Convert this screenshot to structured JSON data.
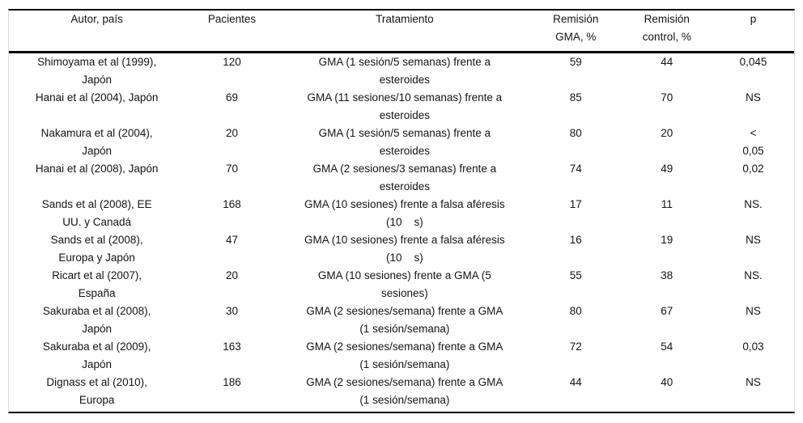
{
  "table": {
    "columns": [
      {
        "key": "author",
        "label": "Autor, país"
      },
      {
        "key": "patients",
        "label": "Pacientes"
      },
      {
        "key": "treatment",
        "label": "Tratamiento"
      },
      {
        "key": "remission_gma",
        "label": "Remisión\nGMA, %"
      },
      {
        "key": "remission_control",
        "label": "Remisión\ncontrol, %"
      },
      {
        "key": "p",
        "label": "p"
      }
    ],
    "rows": [
      {
        "author": "Shimoyama et al (1999),\nJapón",
        "patients": "120",
        "treatment": "GMA (1 sesión/5 semanas) frente a\nesteroides",
        "remission_gma": "59",
        "remission_control": "44",
        "p": "0,045"
      },
      {
        "author": "Hanai et al (2004), Japón",
        "patients": "69",
        "treatment": "GMA (11 sesiones/10 semanas) frente a\nesteroides",
        "remission_gma": "85",
        "remission_control": "70",
        "p": "NS"
      },
      {
        "author": "Nakamura et al (2004),\nJapón",
        "patients": "20",
        "treatment": "GMA (1 sesión/5 semanas) frente a\nesteroides",
        "remission_gma": "80",
        "remission_control": "20",
        "p": "<\n0,05"
      },
      {
        "author": "Hanai et al (2008), Japón",
        "patients": "70",
        "treatment": "GMA (2 sesiones/3 semanas) frente a\nesteroides",
        "remission_gma": "74",
        "remission_control": "49",
        "p": "0,02"
      },
      {
        "author": "Sands et al (2008), EE\nUU. y Canadá",
        "patients": "168",
        "treatment": "GMA (10 sesiones) frente a falsa aféresis\n(10    s)",
        "remission_gma": "17",
        "remission_control": "11",
        "p": "NS."
      },
      {
        "author": "Sands et al (2008),\nEuropa y Japón",
        "patients": "47",
        "treatment": "GMA (10 sesiones) frente a falsa aféresis\n(10    s)",
        "remission_gma": "16",
        "remission_control": "19",
        "p": "NS"
      },
      {
        "author": "Ricart et al (2007),\nEspaña",
        "patients": "20",
        "treatment": "GMA (10 sesiones) frente a GMA (5\nsesiones)",
        "remission_gma": "55",
        "remission_control": "38",
        "p": "NS."
      },
      {
        "author": "Sakuraba et al (2008),\nJapón",
        "patients": "30",
        "treatment": "GMA (2 sesiones/semana) frente a GMA\n(1 sesión/semana)",
        "remission_gma": "80",
        "remission_control": "67",
        "p": "NS"
      },
      {
        "author": "Sakuraba et al (2009),\nJapón",
        "patients": "163",
        "treatment": "GMA (2 sesiones/semana) frente a GMA\n(1 sesión/semana)",
        "remission_gma": "72",
        "remission_control": "54",
        "p": "0,03"
      },
      {
        "author": "Dignass et al (2010),\nEuropa",
        "patients": "186",
        "treatment": "GMA (2 sesiones/semana) frente a GMA\n(1 sesión/semana)",
        "remission_gma": "44",
        "remission_control": "40",
        "p": "NS"
      }
    ]
  },
  "colors": {
    "rule": "#000000",
    "outer_border": "#dcdcdc",
    "text": "#141414",
    "background": "#ffffff"
  }
}
